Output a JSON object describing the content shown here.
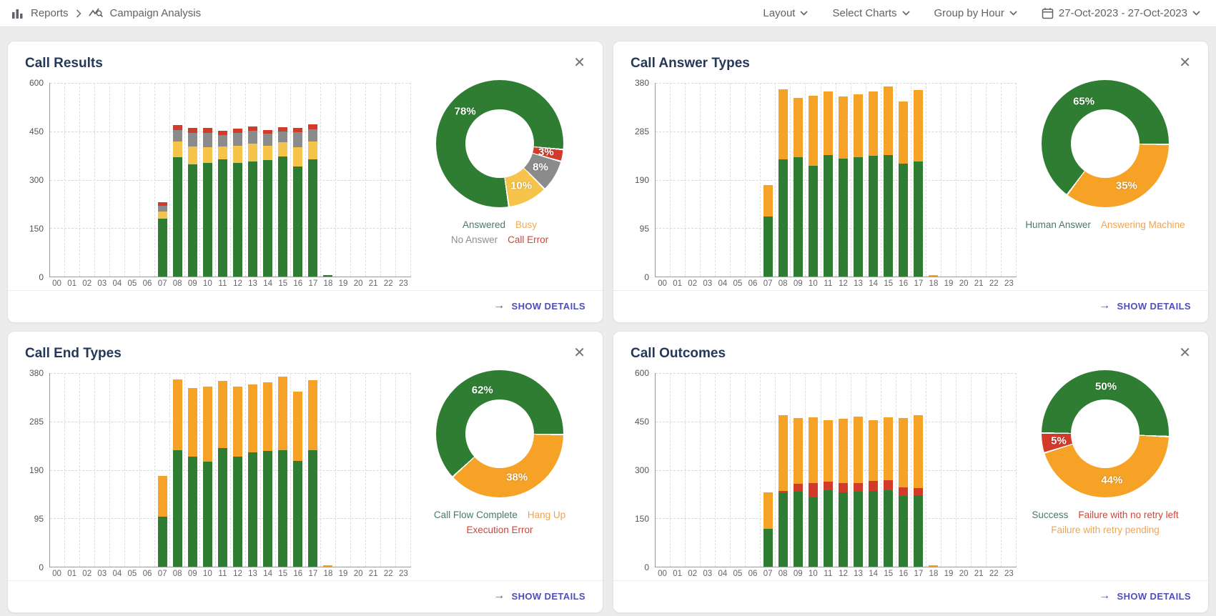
{
  "header": {
    "breadcrumb": {
      "reports": "Reports",
      "page": "Campaign Analysis"
    },
    "menus": [
      {
        "label": "Layout"
      },
      {
        "label": "Select Charts"
      },
      {
        "label": "Group by Hour"
      }
    ],
    "date_range": "27-Oct-2023 - 27-Oct-2023"
  },
  "icons": {
    "close": "✕",
    "arrow_right": "→",
    "breadcrumb_sep": "›"
  },
  "colors": {
    "green": "#2e7d32",
    "yellow": "#f6c44a",
    "gray": "#8b8b8b",
    "red": "#d23a2a",
    "orange": "#f6a227",
    "accent_indigo": "#4d50b8",
    "title_navy": "#253858"
  },
  "chart_data": [
    {
      "type": "bar",
      "title": "Call Results",
      "details_label": "SHOW DETAILS",
      "ymax": 600,
      "yticks": [
        600,
        450,
        300,
        150,
        0
      ],
      "hours": [
        "00",
        "01",
        "02",
        "03",
        "04",
        "05",
        "06",
        "07",
        "08",
        "09",
        "10",
        "11",
        "12",
        "13",
        "14",
        "15",
        "16",
        "17",
        "18",
        "19",
        "20",
        "21",
        "22",
        "23"
      ],
      "series": [
        {
          "name": "Answered",
          "color": "#2e7d32",
          "values": [
            0,
            0,
            0,
            0,
            0,
            0,
            0,
            180,
            370,
            347,
            352,
            363,
            353,
            357,
            362,
            371,
            342,
            364,
            4,
            0,
            0,
            0,
            0,
            0
          ]
        },
        {
          "name": "Busy",
          "color": "#f6c44a",
          "values": [
            0,
            0,
            0,
            0,
            0,
            0,
            0,
            22,
            48,
            55,
            48,
            40,
            52,
            55,
            43,
            46,
            58,
            55,
            0,
            0,
            0,
            0,
            0,
            0
          ]
        },
        {
          "name": "No Answer",
          "color": "#8b8b8b",
          "values": [
            0,
            0,
            0,
            0,
            0,
            0,
            0,
            18,
            36,
            43,
            45,
            36,
            40,
            40,
            38,
            33,
            47,
            38,
            0,
            0,
            0,
            0,
            0,
            0
          ]
        },
        {
          "name": "Call Error",
          "color": "#d23a2a",
          "values": [
            0,
            0,
            0,
            0,
            0,
            0,
            0,
            10,
            16,
            15,
            15,
            13,
            13,
            14,
            12,
            12,
            13,
            14,
            0,
            0,
            0,
            0,
            0,
            0
          ]
        }
      ],
      "donut": {
        "start_deg": 171,
        "slices": [
          {
            "label": "Answered",
            "pct": 78,
            "color": "#2e7d32"
          },
          {
            "label": "Call Error",
            "pct": 3,
            "color": "#d23a2a"
          },
          {
            "label": "No Answer",
            "pct": 8,
            "color": "#8b8b8b"
          },
          {
            "label": "Busy",
            "pct": 10,
            "color": "#f6c44a"
          }
        ]
      },
      "legend_rows": [
        [
          {
            "text": "Answered",
            "color": "#4b7a62"
          },
          {
            "text": "Busy",
            "color": "#f0ab52"
          }
        ],
        [
          {
            "text": "No Answer",
            "color": "#8e8e8e"
          },
          {
            "text": "Call Error",
            "color": "#cf4638"
          }
        ]
      ]
    },
    {
      "type": "bar",
      "title": "Call Answer Types",
      "details_label": "SHOW DETAILS",
      "ymax": 380,
      "yticks": [
        380,
        285,
        190,
        95,
        0
      ],
      "hours": [
        "00",
        "01",
        "02",
        "03",
        "04",
        "05",
        "06",
        "07",
        "08",
        "09",
        "10",
        "11",
        "12",
        "13",
        "14",
        "15",
        "16",
        "17",
        "18",
        "19",
        "20",
        "21",
        "22",
        "23"
      ],
      "series": [
        {
          "name": "Human Answer",
          "color": "#2e7d32",
          "values": [
            0,
            0,
            0,
            0,
            0,
            0,
            0,
            118,
            230,
            234,
            218,
            239,
            231,
            234,
            237,
            238,
            222,
            226,
            0,
            0,
            0,
            0,
            0,
            0
          ]
        },
        {
          "name": "Answering Machine",
          "color": "#f6a227",
          "values": [
            0,
            0,
            0,
            0,
            0,
            0,
            0,
            62,
            138,
            116,
            137,
            124,
            122,
            124,
            126,
            135,
            122,
            140,
            3,
            0,
            0,
            0,
            0,
            0
          ]
        }
      ],
      "donut": {
        "start_deg": 216,
        "slices": [
          {
            "label": "Human Answer",
            "pct": 65,
            "color": "#2e7d32"
          },
          {
            "label": "Answering Machine",
            "pct": 35,
            "color": "#f6a227"
          }
        ]
      },
      "legend_rows": [
        [
          {
            "text": "Human Answer",
            "color": "#4b7a62"
          },
          {
            "text": "Answering Machine",
            "color": "#f0a452"
          }
        ]
      ]
    },
    {
      "type": "bar",
      "title": "Call End Types",
      "details_label": "SHOW DETAILS",
      "ymax": 380,
      "yticks": [
        380,
        285,
        190,
        95,
        0
      ],
      "hours": [
        "00",
        "01",
        "02",
        "03",
        "04",
        "05",
        "06",
        "07",
        "08",
        "09",
        "10",
        "11",
        "12",
        "13",
        "14",
        "15",
        "16",
        "17",
        "18",
        "19",
        "20",
        "21",
        "22",
        "23"
      ],
      "series": [
        {
          "name": "Call Flow Complete",
          "color": "#2e7d32",
          "values": [
            0,
            0,
            0,
            0,
            0,
            0,
            0,
            98,
            228,
            216,
            206,
            233,
            216,
            225,
            227,
            229,
            208,
            228,
            0,
            0,
            0,
            0,
            0,
            0
          ]
        },
        {
          "name": "Hang Up",
          "color": "#f6a227",
          "values": [
            0,
            0,
            0,
            0,
            0,
            0,
            0,
            80,
            140,
            134,
            148,
            131,
            137,
            133,
            135,
            144,
            136,
            138,
            3,
            0,
            0,
            0,
            0,
            0
          ]
        },
        {
          "name": "Execution Error",
          "color": "#d23a2a",
          "values": [
            0,
            0,
            0,
            0,
            0,
            0,
            0,
            0,
            0,
            0,
            0,
            0,
            0,
            0,
            0,
            0,
            0,
            0,
            0,
            0,
            0,
            0,
            0,
            0
          ]
        }
      ],
      "donut": {
        "start_deg": 90,
        "slices": [
          {
            "label": "Hang Up",
            "pct": 38,
            "color": "#f6a227"
          },
          {
            "label": "Call Flow Complete",
            "pct": 62,
            "color": "#2e7d32"
          }
        ]
      },
      "legend_rows": [
        [
          {
            "text": "Call Flow Complete",
            "color": "#4b7a62"
          },
          {
            "text": "Hang Up",
            "color": "#f0a452"
          }
        ],
        [
          {
            "text": "Execution Error",
            "color": "#cf4638"
          }
        ]
      ]
    },
    {
      "type": "bar",
      "title": "Call Outcomes",
      "details_label": "SHOW DETAILS",
      "ymax": 600,
      "yticks": [
        600,
        450,
        300,
        150,
        0
      ],
      "hours": [
        "00",
        "01",
        "02",
        "03",
        "04",
        "05",
        "06",
        "07",
        "08",
        "09",
        "10",
        "11",
        "12",
        "13",
        "14",
        "15",
        "16",
        "17",
        "18",
        "19",
        "20",
        "21",
        "22",
        "23"
      ],
      "series": [
        {
          "name": "Success",
          "color": "#2e7d32",
          "values": [
            0,
            0,
            0,
            0,
            0,
            0,
            0,
            118,
            228,
            232,
            215,
            238,
            230,
            232,
            235,
            236,
            220,
            222,
            0,
            0,
            0,
            0,
            0,
            0
          ]
        },
        {
          "name": "Failure with no retry left",
          "color": "#d23a2a",
          "values": [
            0,
            0,
            0,
            0,
            0,
            0,
            0,
            0,
            6,
            25,
            45,
            25,
            28,
            28,
            30,
            33,
            25,
            22,
            0,
            0,
            0,
            0,
            0,
            0
          ]
        },
        {
          "name": "Failure with retry pending",
          "color": "#f6a227",
          "values": [
            0,
            0,
            0,
            0,
            0,
            0,
            0,
            112,
            236,
            203,
            202,
            190,
            200,
            205,
            190,
            193,
            215,
            226,
            4,
            0,
            0,
            0,
            0,
            0
          ]
        }
      ],
      "donut": {
        "start_deg": 270,
        "slices": [
          {
            "label": "Success",
            "pct": 50,
            "color": "#2e7d32"
          },
          {
            "label": "Failure with retry pending",
            "pct": 44,
            "color": "#f6a227"
          },
          {
            "label": "Failure with no retry left",
            "pct": 5,
            "color": "#d23a2a"
          }
        ]
      },
      "legend_rows": [
        [
          {
            "text": "Success",
            "color": "#4b7a62"
          },
          {
            "text": "Failure with no retry left",
            "color": "#cf4638"
          }
        ],
        [
          {
            "text": "Failure with retry pending",
            "color": "#f0a452"
          }
        ]
      ]
    }
  ]
}
